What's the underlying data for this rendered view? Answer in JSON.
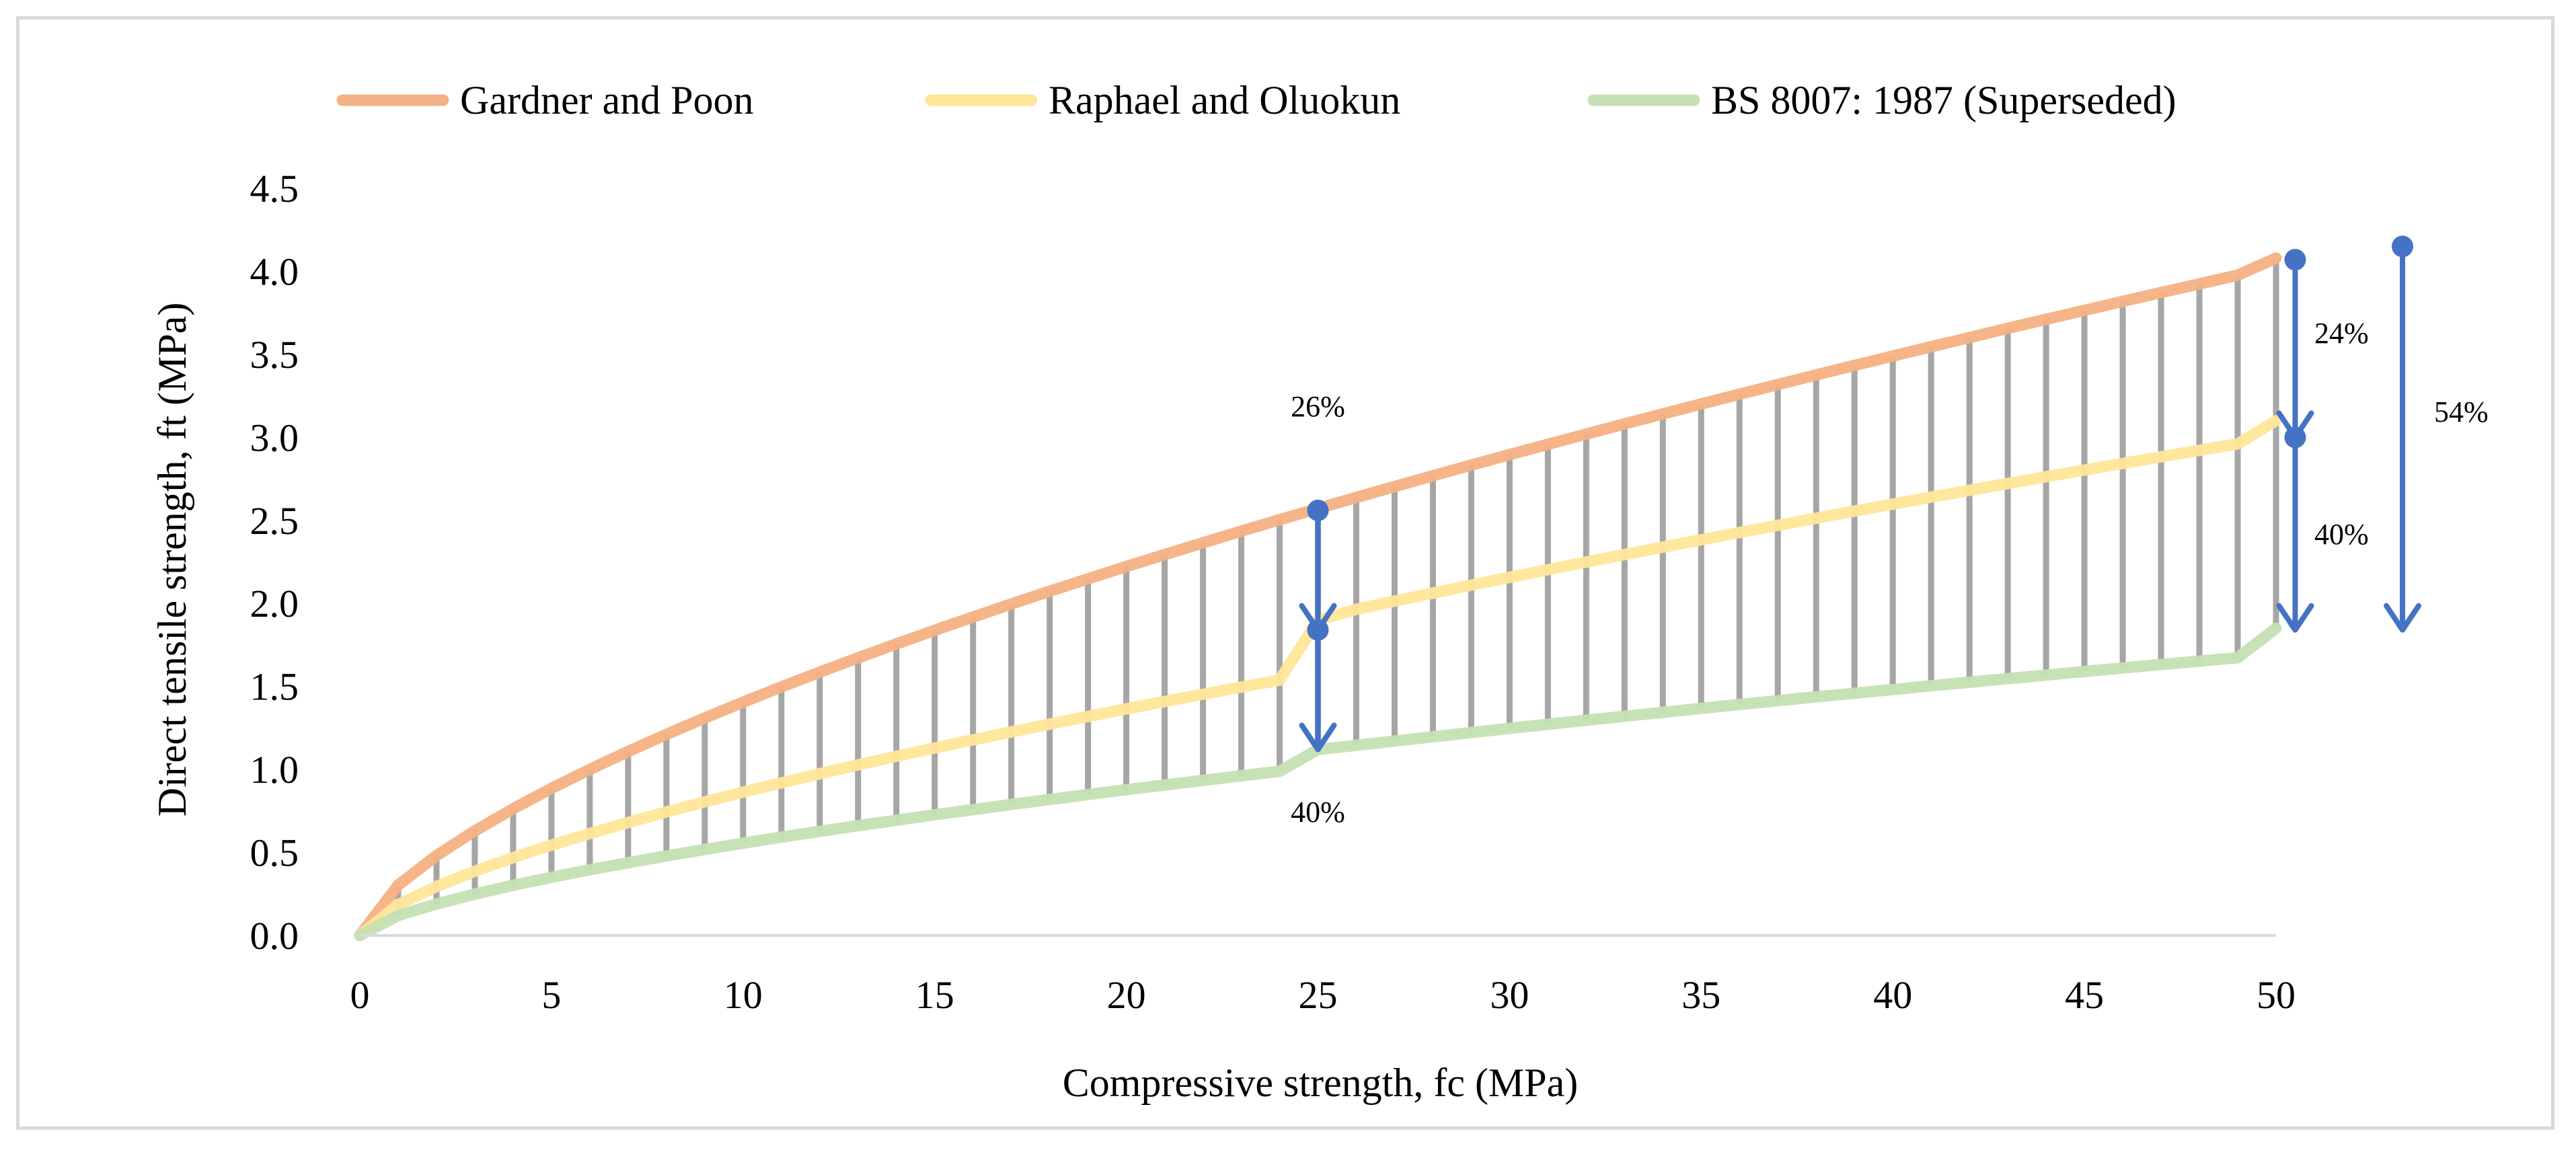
{
  "chart_data": {
    "type": "line",
    "title": "",
    "xlabel": "Compressive strength, fc (MPa)",
    "ylabel": "Direct tensile strength, ft (MPa)",
    "xlim": [
      0,
      50
    ],
    "ylim": [
      0,
      4.5
    ],
    "x_ticks": [
      "0",
      "5",
      "10",
      "15",
      "20",
      "25",
      "30",
      "35",
      "40",
      "45",
      "50"
    ],
    "y_ticks": [
      "0.0",
      "0.5",
      "1.0",
      "1.5",
      "2.0",
      "2.5",
      "3.0",
      "3.5",
      "4.0",
      "4.5"
    ],
    "grid": false,
    "legend_position": "top",
    "x": [
      0,
      1,
      2,
      3,
      4,
      5,
      6,
      7,
      8,
      9,
      10,
      11,
      12,
      13,
      14,
      15,
      16,
      17,
      18,
      19,
      20,
      21,
      22,
      23,
      24,
      25,
      26,
      27,
      28,
      29,
      30,
      31,
      32,
      33,
      34,
      35,
      36,
      37,
      38,
      39,
      40,
      41,
      42,
      43,
      44,
      45,
      46,
      47,
      48,
      49,
      50
    ],
    "series": [
      {
        "name": "Gardner and Poon",
        "color": "#f4b183",
        "values": [
          0,
          0.303,
          0.481,
          0.63,
          0.763,
          0.886,
          1.0,
          1.108,
          1.211,
          1.31,
          1.405,
          1.497,
          1.586,
          1.672,
          1.756,
          1.838,
          1.918,
          1.997,
          2.073,
          2.148,
          2.222,
          2.294,
          2.365,
          2.435,
          2.504,
          2.571,
          2.638,
          2.704,
          2.769,
          2.833,
          2.896,
          2.958,
          3.02,
          3.081,
          3.141,
          3.201,
          3.26,
          3.318,
          3.376,
          3.433,
          3.49,
          3.546,
          3.601,
          3.657,
          3.711,
          3.765,
          3.819,
          3.872,
          3.924,
          3.977,
          4.08
        ]
      },
      {
        "name": "Raphael and Oluokun",
        "color": "#ffe699",
        "values": [
          0,
          0.186,
          0.295,
          0.387,
          0.469,
          0.544,
          0.614,
          0.68,
          0.744,
          0.805,
          0.863,
          0.919,
          0.974,
          1.027,
          1.079,
          1.129,
          1.178,
          1.226,
          1.273,
          1.319,
          1.365,
          1.409,
          1.453,
          1.496,
          1.538,
          1.9,
          1.964,
          2.014,
          2.062,
          2.11,
          2.157,
          2.203,
          2.249,
          2.294,
          2.339,
          2.383,
          2.427,
          2.47,
          2.513,
          2.556,
          2.598,
          2.64,
          2.681,
          2.722,
          2.763,
          2.803,
          2.843,
          2.883,
          2.922,
          2.961,
          3.1
        ]
      },
      {
        "name": "BS 8007: 1987 (Superseded)",
        "color": "#c5e0b4",
        "values": [
          0,
          0.12,
          0.19,
          0.249,
          0.302,
          0.35,
          0.396,
          0.438,
          0.479,
          0.518,
          0.556,
          0.592,
          0.627,
          0.661,
          0.694,
          0.727,
          0.758,
          0.789,
          0.819,
          0.849,
          0.878,
          0.906,
          0.934,
          0.962,
          0.989,
          1.12,
          1.145,
          1.171,
          1.197,
          1.222,
          1.247,
          1.272,
          1.296,
          1.32,
          1.344,
          1.368,
          1.391,
          1.414,
          1.437,
          1.459,
          1.481,
          1.504,
          1.525,
          1.547,
          1.568,
          1.59,
          1.611,
          1.632,
          1.652,
          1.673,
          1.85
        ]
      }
    ],
    "annotations": [
      {
        "label": "26%",
        "x": 25,
        "from": 2.56,
        "to": 1.84
      },
      {
        "label": "40%",
        "x": 25,
        "from": 1.84,
        "to": 1.12
      },
      {
        "label": "24%",
        "x": 50.5,
        "from": 4.07,
        "to": 3.0
      },
      {
        "label": "40%",
        "x": 50.5,
        "from": 3.0,
        "to": 1.84
      },
      {
        "label": "54%",
        "x": 53.3,
        "from": 4.15,
        "to": 1.84
      }
    ],
    "arrow_color": "#4472c4",
    "hatch_color": "#a6a6a6"
  }
}
